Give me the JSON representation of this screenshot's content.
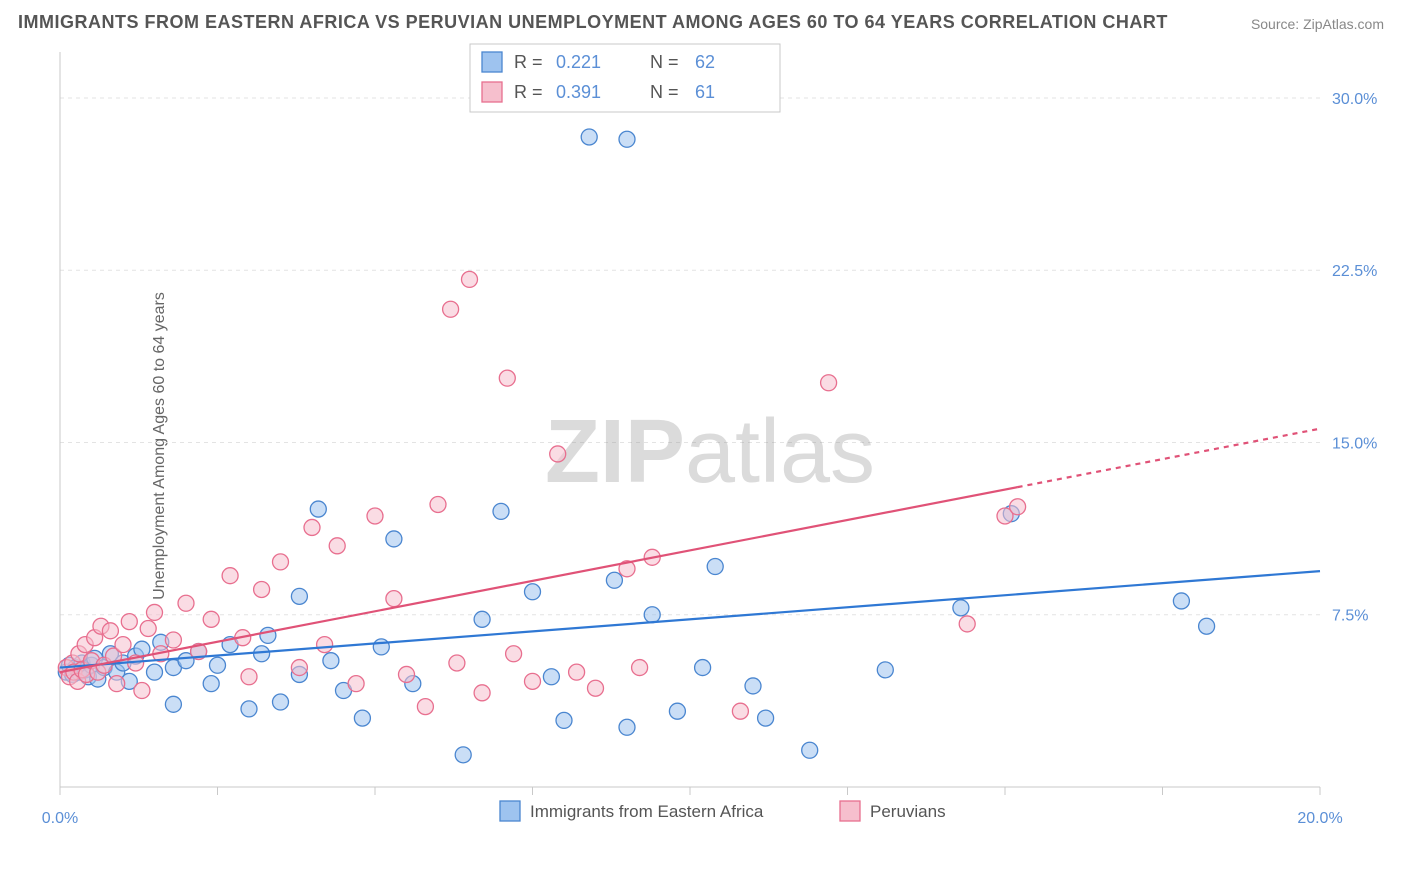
{
  "title": "IMMIGRANTS FROM EASTERN AFRICA VS PERUVIAN UNEMPLOYMENT AMONG AGES 60 TO 64 YEARS CORRELATION CHART",
  "source_prefix": "Source: ",
  "source_name": "ZipAtlas.com",
  "y_axis_label": "Unemployment Among Ages 60 to 64 years",
  "watermark_bold": "ZIP",
  "watermark_light": "atlas",
  "chart": {
    "type": "scatter",
    "background_color": "#ffffff",
    "grid_color": "#e3e3e3",
    "axis_color": "#c9c9c9",
    "xlim": [
      0,
      20
    ],
    "ylim": [
      0,
      32
    ],
    "x_ticks": [
      0,
      2.5,
      5,
      7.5,
      10,
      12.5,
      15,
      17.5,
      20
    ],
    "x_tick_labels": {
      "0": "0.0%",
      "20": "20.0%"
    },
    "y_ticks": [
      7.5,
      15,
      22.5,
      30
    ],
    "y_tick_labels": {
      "7.5": "7.5%",
      "15": "15.0%",
      "22.5": "22.5%",
      "30": "30.0%"
    },
    "marker_radius": 8,
    "marker_opacity": 0.55,
    "marker_stroke_width": 1.3,
    "trend_line_width": 2.2,
    "series": [
      {
        "id": "series1",
        "label": "Immigrants from Eastern Africa",
        "fill_color": "#9ec3ef",
        "stroke_color": "#4a86d0",
        "trend_color": "#2f78d4",
        "R": "0.221",
        "N": "62",
        "trend": {
          "x1": 0,
          "y1": 5.2,
          "x2": 20,
          "y2": 9.4,
          "dashed_from_x": 20
        },
        "points": [
          [
            0.1,
            5.0
          ],
          [
            0.15,
            5.3
          ],
          [
            0.2,
            4.9
          ],
          [
            0.25,
            5.2
          ],
          [
            0.3,
            5.0
          ],
          [
            0.35,
            5.4
          ],
          [
            0.4,
            5.1
          ],
          [
            0.45,
            4.8
          ],
          [
            0.5,
            5.3
          ],
          [
            0.55,
            5.6
          ],
          [
            0.6,
            4.7
          ],
          [
            0.7,
            5.2
          ],
          [
            0.8,
            5.8
          ],
          [
            0.9,
            5.0
          ],
          [
            1.0,
            5.4
          ],
          [
            1.1,
            4.6
          ],
          [
            1.2,
            5.7
          ],
          [
            1.3,
            6.0
          ],
          [
            1.5,
            5.0
          ],
          [
            1.6,
            6.3
          ],
          [
            1.8,
            5.2
          ],
          [
            1.8,
            3.6
          ],
          [
            2.0,
            5.5
          ],
          [
            2.2,
            5.9
          ],
          [
            2.4,
            4.5
          ],
          [
            2.5,
            5.3
          ],
          [
            2.7,
            6.2
          ],
          [
            3.0,
            3.4
          ],
          [
            3.2,
            5.8
          ],
          [
            3.3,
            6.6
          ],
          [
            3.5,
            3.7
          ],
          [
            3.8,
            4.9
          ],
          [
            3.8,
            8.3
          ],
          [
            4.1,
            12.1
          ],
          [
            4.3,
            5.5
          ],
          [
            4.5,
            4.2
          ],
          [
            4.8,
            3.0
          ],
          [
            5.1,
            6.1
          ],
          [
            5.3,
            10.8
          ],
          [
            5.6,
            4.5
          ],
          [
            6.4,
            1.4
          ],
          [
            6.7,
            7.3
          ],
          [
            7.0,
            12.0
          ],
          [
            7.5,
            8.5
          ],
          [
            7.8,
            4.8
          ],
          [
            8.0,
            2.9
          ],
          [
            8.4,
            28.3
          ],
          [
            8.8,
            9.0
          ],
          [
            9.0,
            28.2
          ],
          [
            9.0,
            2.6
          ],
          [
            9.4,
            7.5
          ],
          [
            9.8,
            3.3
          ],
          [
            10.2,
            5.2
          ],
          [
            10.4,
            9.6
          ],
          [
            11.0,
            4.4
          ],
          [
            11.2,
            3.0
          ],
          [
            11.9,
            1.6
          ],
          [
            13.1,
            5.1
          ],
          [
            14.3,
            7.8
          ],
          [
            15.1,
            11.9
          ],
          [
            17.8,
            8.1
          ],
          [
            18.2,
            7.0
          ]
        ]
      },
      {
        "id": "series2",
        "label": "Peruvians",
        "fill_color": "#f6bfcd",
        "stroke_color": "#e86f8f",
        "trend_color": "#e05277",
        "R": "0.391",
        "N": "61",
        "trend": {
          "x1": 0,
          "y1": 5.0,
          "x2": 20,
          "y2": 15.6,
          "dashed_from_x": 15.2
        },
        "points": [
          [
            0.1,
            5.2
          ],
          [
            0.15,
            4.8
          ],
          [
            0.2,
            5.4
          ],
          [
            0.22,
            5.0
          ],
          [
            0.28,
            4.6
          ],
          [
            0.3,
            5.8
          ],
          [
            0.35,
            5.1
          ],
          [
            0.4,
            6.2
          ],
          [
            0.42,
            4.9
          ],
          [
            0.5,
            5.5
          ],
          [
            0.55,
            6.5
          ],
          [
            0.6,
            5.0
          ],
          [
            0.65,
            7.0
          ],
          [
            0.7,
            5.3
          ],
          [
            0.8,
            6.8
          ],
          [
            0.85,
            5.7
          ],
          [
            0.9,
            4.5
          ],
          [
            1.0,
            6.2
          ],
          [
            1.1,
            7.2
          ],
          [
            1.2,
            5.4
          ],
          [
            1.3,
            4.2
          ],
          [
            1.4,
            6.9
          ],
          [
            1.5,
            7.6
          ],
          [
            1.6,
            5.8
          ],
          [
            1.8,
            6.4
          ],
          [
            2.0,
            8.0
          ],
          [
            2.2,
            5.9
          ],
          [
            2.4,
            7.3
          ],
          [
            2.7,
            9.2
          ],
          [
            2.9,
            6.5
          ],
          [
            3.0,
            4.8
          ],
          [
            3.2,
            8.6
          ],
          [
            3.5,
            9.8
          ],
          [
            3.8,
            5.2
          ],
          [
            4.0,
            11.3
          ],
          [
            4.2,
            6.2
          ],
          [
            4.4,
            10.5
          ],
          [
            4.7,
            4.5
          ],
          [
            5.0,
            11.8
          ],
          [
            5.3,
            8.2
          ],
          [
            5.5,
            4.9
          ],
          [
            5.8,
            3.5
          ],
          [
            6.0,
            12.3
          ],
          [
            6.2,
            20.8
          ],
          [
            6.3,
            5.4
          ],
          [
            6.5,
            22.1
          ],
          [
            6.7,
            4.1
          ],
          [
            7.1,
            17.8
          ],
          [
            7.2,
            5.8
          ],
          [
            7.5,
            4.6
          ],
          [
            7.9,
            14.5
          ],
          [
            8.2,
            5.0
          ],
          [
            8.5,
            4.3
          ],
          [
            9.0,
            9.5
          ],
          [
            9.2,
            5.2
          ],
          [
            9.4,
            10.0
          ],
          [
            10.8,
            3.3
          ],
          [
            12.2,
            17.6
          ],
          [
            14.4,
            7.1
          ],
          [
            15.0,
            11.8
          ],
          [
            15.2,
            12.2
          ]
        ]
      }
    ]
  },
  "stats_box": {
    "r_label": "R =",
    "n_label": "N ="
  },
  "legend_bottom": {
    "items": [
      "series1",
      "series2"
    ]
  }
}
